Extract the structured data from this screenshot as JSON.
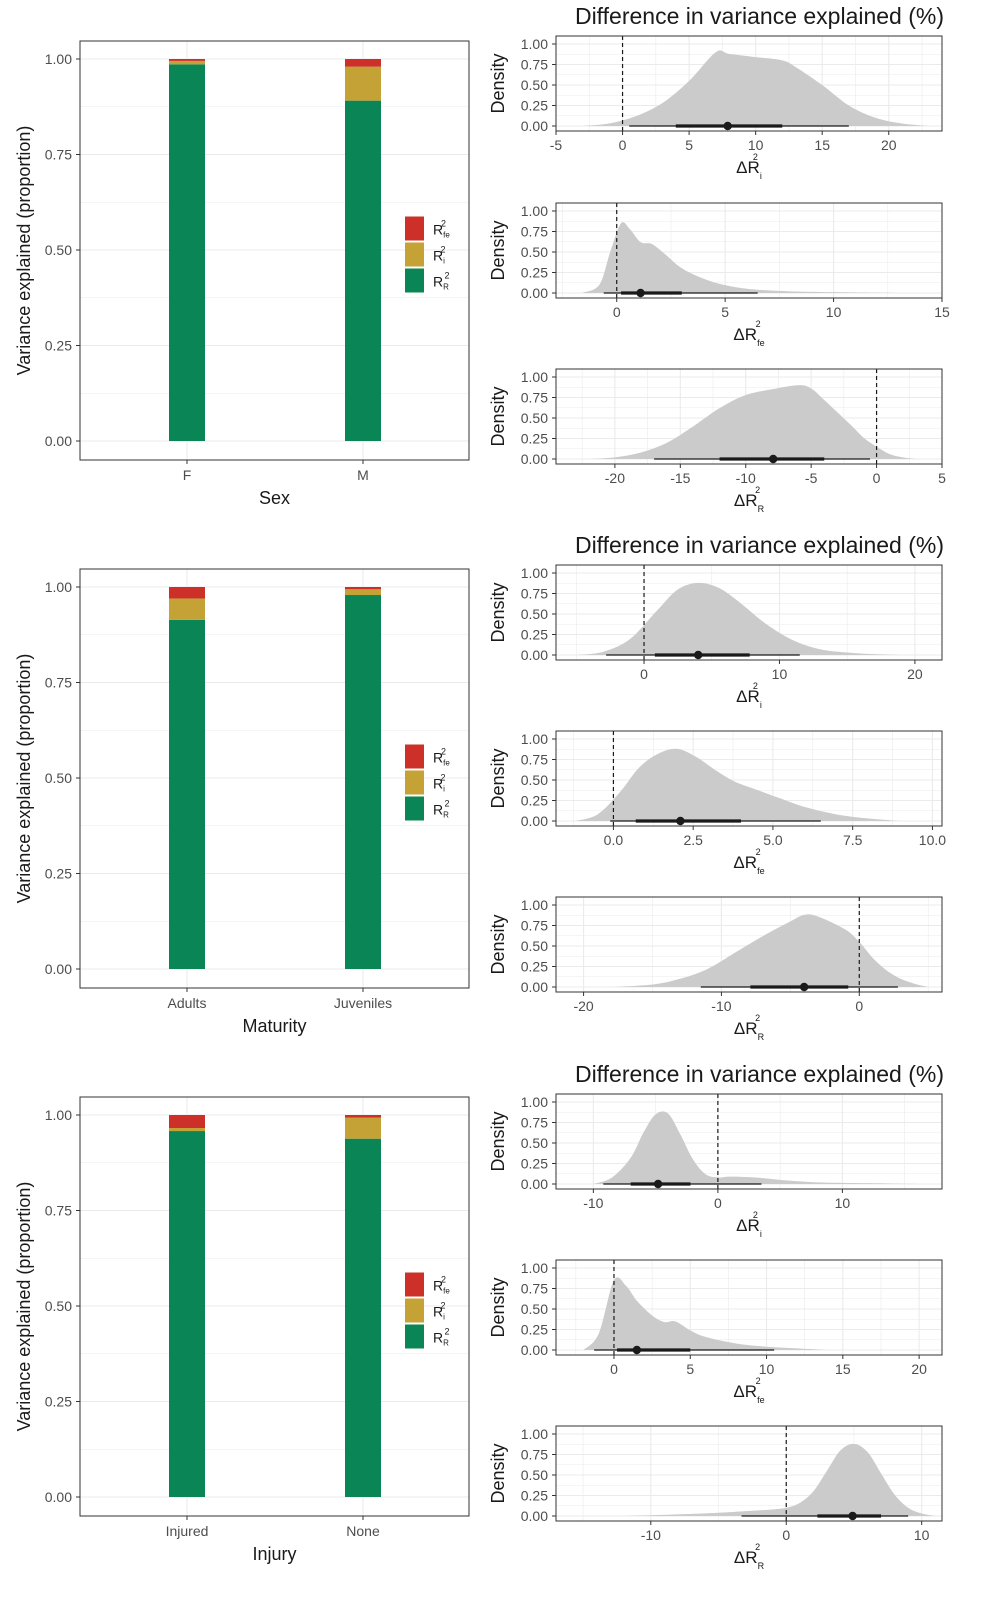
{
  "colors": {
    "fe": "#CC3029",
    "i": "#C4A236",
    "R": "#0A8556",
    "density_fill": "#CBCBCB",
    "grid": "#EBEBEB",
    "panel_border": "#333333"
  },
  "legend": {
    "items": [
      {
        "key": "fe",
        "base": "R",
        "sup": "2",
        "sub": "fe"
      },
      {
        "key": "i",
        "base": "R",
        "sup": "2",
        "sub": "i"
      },
      {
        "key": "R",
        "base": "R",
        "sup": "2",
        "sub": "R"
      }
    ]
  },
  "chart_data": [
    {
      "type": "bar",
      "stacked": true,
      "group": "Sex",
      "xlabel": "Sex",
      "ylabel": "Variance explained (proportion)",
      "ylim": [
        0,
        1
      ],
      "yticks": [
        "0.00",
        "0.25",
        "0.50",
        "0.75",
        "1.00"
      ],
      "categories": [
        "F",
        "M"
      ],
      "series": [
        {
          "key": "R",
          "values": [
            0.986,
            0.891
          ]
        },
        {
          "key": "i",
          "values": [
            0.009,
            0.089
          ]
        },
        {
          "key": "fe",
          "values": [
            0.005,
            0.02
          ]
        }
      ]
    },
    {
      "type": "bar",
      "stacked": true,
      "group": "Maturity",
      "xlabel": "Maturity",
      "ylabel": "Variance explained (proportion)",
      "ylim": [
        0,
        1
      ],
      "yticks": [
        "0.00",
        "0.25",
        "0.50",
        "0.75",
        "1.00"
      ],
      "categories": [
        "Adults",
        "Juveniles"
      ],
      "series": [
        {
          "key": "R",
          "values": [
            0.914,
            0.979
          ]
        },
        {
          "key": "i",
          "values": [
            0.056,
            0.015
          ]
        },
        {
          "key": "fe",
          "values": [
            0.03,
            0.006
          ]
        }
      ]
    },
    {
      "type": "bar",
      "stacked": true,
      "group": "Injury",
      "xlabel": "Injury",
      "ylabel": "Variance explained (proportion)",
      "ylim": [
        0,
        1
      ],
      "yticks": [
        "0.00",
        "0.25",
        "0.50",
        "0.75",
        "1.00"
      ],
      "categories": [
        "Injured",
        "None"
      ],
      "series": [
        {
          "key": "R",
          "values": [
            0.958,
            0.938
          ]
        },
        {
          "key": "i",
          "values": [
            0.008,
            0.055
          ]
        },
        {
          "key": "fe",
          "values": [
            0.034,
            0.007
          ]
        }
      ]
    },
    {
      "type": "area",
      "group": "Sex",
      "title": "Difference in variance explained (%)",
      "ylabel": "Density",
      "xsub": "i",
      "xlim": [
        -5,
        24
      ],
      "ylim": [
        0,
        1
      ],
      "xticks": [
        -5,
        0,
        5,
        10,
        15,
        20
      ],
      "yticks": [
        "0.00",
        "0.25",
        "0.50",
        "0.75",
        "1.00"
      ],
      "ref_line": 0,
      "density": {
        "x": [
          -3,
          -1,
          1,
          3,
          5,
          7,
          8,
          10,
          12,
          13,
          15,
          17,
          19,
          21,
          23
        ],
        "y": [
          0,
          0.03,
          0.12,
          0.28,
          0.55,
          0.9,
          0.88,
          0.84,
          0.8,
          0.72,
          0.5,
          0.25,
          0.1,
          0.03,
          0
        ]
      },
      "interval": {
        "point": 7.9,
        "inner": [
          4,
          12
        ],
        "outer": [
          0.5,
          17
        ]
      }
    },
    {
      "type": "area",
      "group": "Sex",
      "title": "",
      "ylabel": "Density",
      "xsub": "fe",
      "xlim": [
        -2.8,
        15
      ],
      "ylim": [
        0,
        1
      ],
      "xticks": [
        0,
        5,
        10,
        15
      ],
      "yticks": [
        "0.00",
        "0.25",
        "0.50",
        "0.75",
        "1.00"
      ],
      "ref_line": 0,
      "density": {
        "x": [
          -1.6,
          -0.8,
          -0.3,
          0.2,
          0.6,
          1.1,
          1.6,
          2.2,
          2.9,
          3.6,
          4.5,
          5.5,
          6.5,
          8,
          10,
          13
        ],
        "y": [
          0,
          0.1,
          0.5,
          0.85,
          0.78,
          0.62,
          0.6,
          0.48,
          0.32,
          0.22,
          0.13,
          0.07,
          0.04,
          0.02,
          0.01,
          0
        ]
      },
      "interval": {
        "point": 1.1,
        "inner": [
          0.2,
          3
        ],
        "outer": [
          -0.6,
          6.5
        ]
      }
    },
    {
      "type": "area",
      "group": "Sex",
      "title": "",
      "ylabel": "Density",
      "xsub": "R",
      "xlim": [
        -24.5,
        5
      ],
      "ylim": [
        0,
        1
      ],
      "xticks": [
        -20,
        -15,
        -10,
        -5,
        0,
        5
      ],
      "yticks": [
        "0.00",
        "0.25",
        "0.50",
        "0.75",
        "1.00"
      ],
      "ref_line": 0,
      "density": {
        "x": [
          -22,
          -20,
          -18,
          -16,
          -14,
          -12,
          -10,
          -8,
          -6,
          -5,
          -4,
          -2,
          -1,
          0,
          1,
          2,
          3
        ],
        "y": [
          0,
          0.02,
          0.08,
          0.2,
          0.4,
          0.62,
          0.78,
          0.85,
          0.9,
          0.86,
          0.72,
          0.42,
          0.26,
          0.15,
          0.06,
          0.02,
          0
        ]
      },
      "interval": {
        "point": -7.9,
        "inner": [
          -12,
          -4
        ],
        "outer": [
          -17,
          -0.5
        ]
      }
    },
    {
      "type": "area",
      "group": "Maturity",
      "title": "Difference in variance explained (%)",
      "ylabel": "Density",
      "xsub": "i",
      "xlim": [
        -6.5,
        22
      ],
      "ylim": [
        0,
        1
      ],
      "xticks": [
        0,
        10,
        20
      ],
      "yticks": [
        "0.00",
        "0.25",
        "0.50",
        "0.75",
        "1.00"
      ],
      "ref_line": 0,
      "density": {
        "x": [
          -5,
          -3,
          -1,
          1,
          2.5,
          4,
          5.5,
          7,
          9,
          11,
          13,
          15,
          17,
          19
        ],
        "y": [
          0,
          0.04,
          0.2,
          0.55,
          0.8,
          0.88,
          0.82,
          0.65,
          0.38,
          0.18,
          0.07,
          0.03,
          0.01,
          0
        ]
      },
      "interval": {
        "point": 4,
        "inner": [
          0.8,
          7.8
        ],
        "outer": [
          -2.8,
          11.5
        ]
      }
    },
    {
      "type": "area",
      "group": "Maturity",
      "title": "",
      "ylabel": "Density",
      "xsub": "fe",
      "xlim": [
        -1.8,
        10.3
      ],
      "ylim": [
        0,
        1
      ],
      "xticks": [
        "0.0",
        "2.5",
        "5.0",
        "7.5",
        "10.0"
      ],
      "yticks": [
        "0.00",
        "0.25",
        "0.50",
        "0.75",
        "1.00"
      ],
      "ref_line": 0,
      "density": {
        "x": [
          -1.2,
          -0.5,
          0.2,
          0.8,
          1.4,
          2,
          2.6,
          3.2,
          3.8,
          4.5,
          5.2,
          6,
          7,
          8,
          9
        ],
        "y": [
          0,
          0.08,
          0.35,
          0.65,
          0.82,
          0.88,
          0.78,
          0.62,
          0.48,
          0.38,
          0.28,
          0.17,
          0.08,
          0.03,
          0
        ]
      },
      "interval": {
        "point": 2.1,
        "inner": [
          0.7,
          4
        ],
        "outer": [
          -0.1,
          6.5
        ]
      }
    },
    {
      "type": "area",
      "group": "Maturity",
      "title": "",
      "ylabel": "Density",
      "xsub": "R",
      "xlim": [
        -22,
        6
      ],
      "ylim": [
        0,
        1
      ],
      "xticks": [
        -20,
        -10,
        0
      ],
      "yticks": [
        "0.00",
        "0.25",
        "0.50",
        "0.75",
        "1.00"
      ],
      "ref_line": 0,
      "density": {
        "x": [
          -18,
          -15,
          -13,
          -11,
          -9,
          -7,
          -5,
          -4,
          -3,
          -1,
          0,
          1,
          2,
          3,
          4,
          5
        ],
        "y": [
          0,
          0.03,
          0.1,
          0.22,
          0.42,
          0.62,
          0.8,
          0.88,
          0.86,
          0.7,
          0.55,
          0.35,
          0.2,
          0.1,
          0.04,
          0
        ]
      },
      "interval": {
        "point": -4,
        "inner": [
          -7.9,
          -0.8
        ],
        "outer": [
          -11.5,
          2.8
        ]
      }
    },
    {
      "type": "area",
      "group": "Injury",
      "title": "Difference in variance explained (%)",
      "ylabel": "Density",
      "xsub": "i",
      "xlim": [
        -13,
        18
      ],
      "ylim": [
        0,
        1
      ],
      "xticks": [
        -10,
        0,
        10
      ],
      "yticks": [
        "0.00",
        "0.25",
        "0.50",
        "0.75",
        "1.00"
      ],
      "ref_line": 0,
      "density": {
        "x": [
          -10,
          -8.5,
          -7,
          -6,
          -5,
          -4,
          -3,
          -2,
          -1,
          0,
          1,
          3,
          5,
          8,
          12,
          16
        ],
        "y": [
          0,
          0.08,
          0.32,
          0.62,
          0.85,
          0.86,
          0.6,
          0.3,
          0.12,
          0.08,
          0.09,
          0.08,
          0.05,
          0.02,
          0.01,
          0
        ]
      },
      "interval": {
        "point": -4.8,
        "inner": [
          -7,
          -2.2
        ],
        "outer": [
          -9.2,
          3.5
        ]
      }
    },
    {
      "type": "area",
      "group": "Injury",
      "title": "",
      "ylabel": "Density",
      "xsub": "fe",
      "xlim": [
        -3.8,
        21.5
      ],
      "ylim": [
        0,
        1
      ],
      "xticks": [
        0,
        5,
        10,
        15,
        20
      ],
      "yticks": [
        "0.00",
        "0.25",
        "0.50",
        "0.75",
        "1.00"
      ],
      "ref_line": 0,
      "density": {
        "x": [
          -2,
          -1,
          0,
          0.8,
          1.5,
          2.5,
          3.3,
          4,
          5,
          6,
          8,
          10,
          12,
          14
        ],
        "y": [
          0,
          0.2,
          0.85,
          0.78,
          0.6,
          0.42,
          0.34,
          0.35,
          0.24,
          0.16,
          0.08,
          0.04,
          0.02,
          0
        ]
      },
      "interval": {
        "point": 1.5,
        "inner": [
          0.2,
          5
        ],
        "outer": [
          -1.3,
          10.5
        ]
      }
    },
    {
      "type": "area",
      "group": "Injury",
      "title": "",
      "ylabel": "Density",
      "xsub": "R",
      "xlim": [
        -17,
        11.5
      ],
      "ylim": [
        0,
        1
      ],
      "xticks": [
        -10,
        0,
        10
      ],
      "yticks": [
        "0.00",
        "0.25",
        "0.50",
        "0.75",
        "1.00"
      ],
      "ref_line": 0,
      "density": {
        "x": [
          -12,
          -8,
          -5,
          -3,
          -1,
          0,
          1,
          2,
          3,
          4,
          5,
          6,
          7,
          8,
          9,
          10,
          11
        ],
        "y": [
          0,
          0.02,
          0.04,
          0.06,
          0.08,
          0.1,
          0.16,
          0.3,
          0.55,
          0.8,
          0.88,
          0.78,
          0.52,
          0.26,
          0.1,
          0.03,
          0
        ]
      },
      "interval": {
        "point": 4.9,
        "inner": [
          2.3,
          7
        ],
        "outer": [
          -3.3,
          9
        ]
      }
    }
  ]
}
